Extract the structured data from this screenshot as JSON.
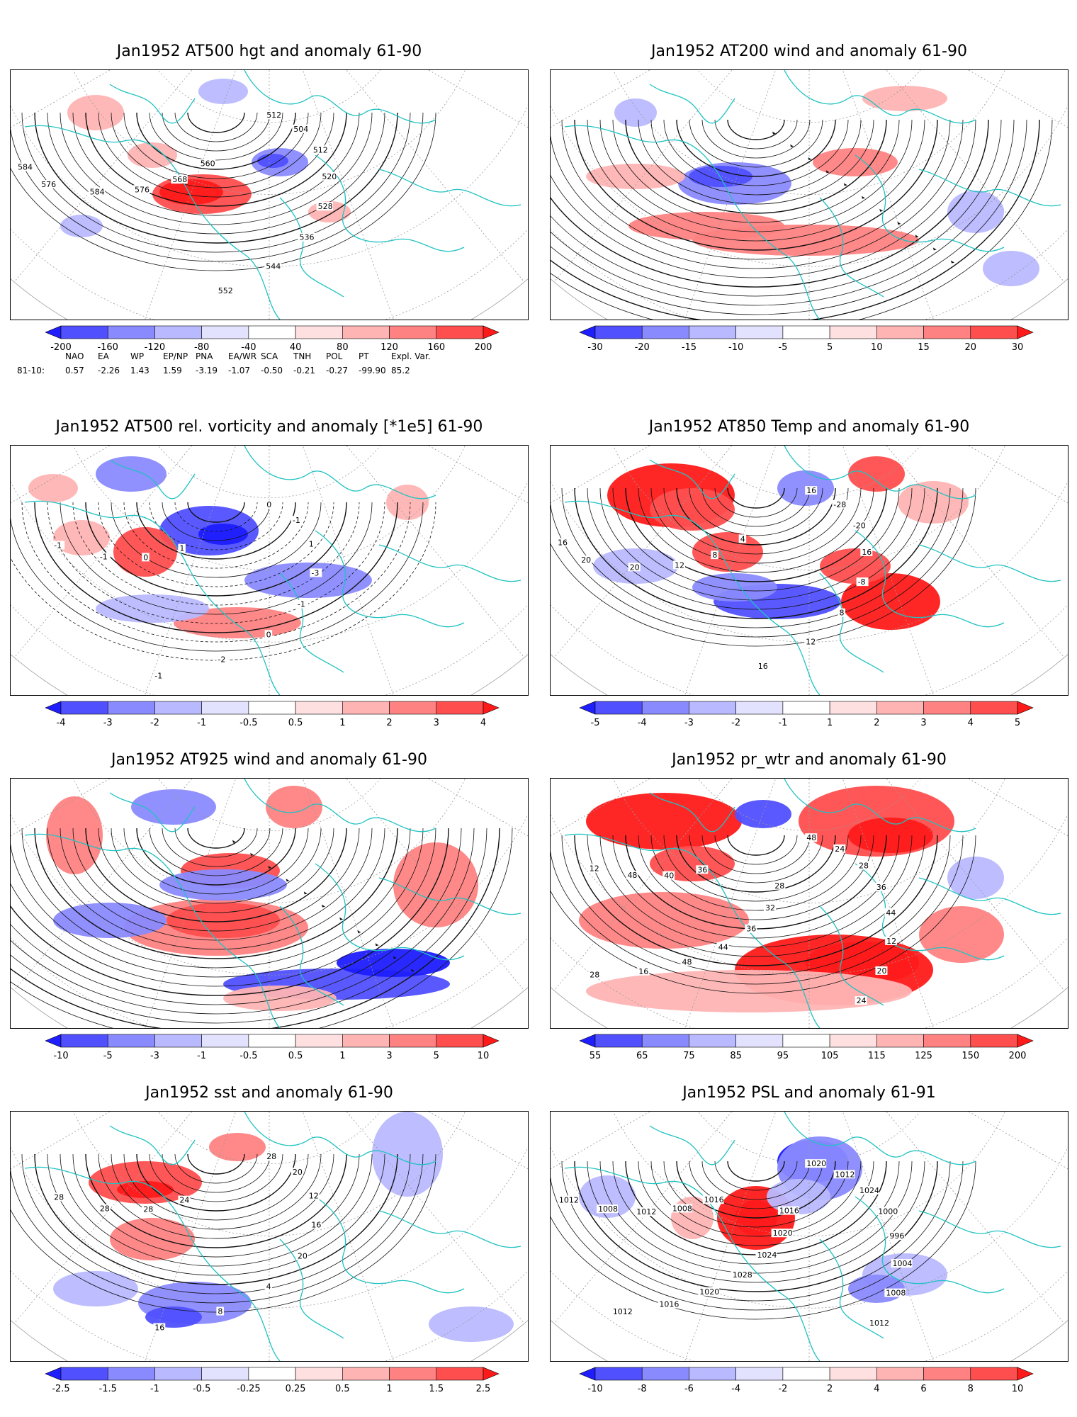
{
  "colors": {
    "coast": "#20c2c2",
    "contour": "#111111",
    "grid": "#9a9a9a",
    "scale": [
      "#1e1eff",
      "#5050ff",
      "#8a8aff",
      "#b9b9ff",
      "#e2e2ff",
      "#ffffff",
      "#ffe0e0",
      "#ffb4b4",
      "#ff8282",
      "#ff4e4e",
      "#ff1a1a"
    ]
  },
  "panels": [
    {
      "title": "Jan1952 AT500 hgt and anomaly 61-90",
      "ticks": [
        "-200",
        "-160",
        "-120",
        "-80",
        "-40",
        "40",
        "80",
        "120",
        "160",
        "200"
      ],
      "contour_labels": [
        "512",
        "504",
        "512",
        "520",
        "528",
        "536",
        "544",
        "552",
        "560",
        "568",
        "576",
        "584",
        "576",
        "584"
      ],
      "type": "hgt"
    },
    {
      "title": "Jan1952 AT200 wind and anomaly 61-90",
      "ticks": [
        "-30",
        "-20",
        "-15",
        "-10",
        "-5",
        "5",
        "10",
        "15",
        "20",
        "30"
      ],
      "contour_labels": [],
      "type": "wind"
    },
    {
      "title": "Jan1952 AT500 rel. vorticity and anomaly [*1e5] 61-90",
      "ticks": [
        "-4",
        "-3",
        "-2",
        "-1",
        "-0.5",
        "0.5",
        "1",
        "2",
        "3",
        "4"
      ],
      "contour_labels": [
        "0",
        "-1",
        "1",
        "-3",
        "-1",
        "0",
        "-2",
        "-1",
        "1",
        "0",
        "-1",
        "-1"
      ],
      "type": "vort"
    },
    {
      "title": "Jan1952 AT850 Temp and anomaly 61-90",
      "ticks": [
        "-5",
        "-4",
        "-3",
        "-2",
        "-1",
        "1",
        "2",
        "3",
        "4",
        "5"
      ],
      "contour_labels": [
        "16",
        "-28",
        "-20",
        "16",
        "-8",
        "8",
        "12",
        "16",
        "4",
        "8",
        "12",
        "20",
        "20",
        "16"
      ],
      "type": "temp"
    },
    {
      "title": "Jan1952 AT925 wind and anomaly 61-90",
      "ticks": [
        "-10",
        "-5",
        "-3",
        "-1",
        "-0.5",
        "0.5",
        "1",
        "3",
        "5",
        "10"
      ],
      "contour_labels": [],
      "type": "wind"
    },
    {
      "title": "Jan1952 pr_wtr and anomaly 61-90",
      "ticks": [
        "55",
        "65",
        "75",
        "85",
        "95",
        "105",
        "115",
        "125",
        "150",
        "200"
      ],
      "contour_labels": [
        "48",
        "24",
        "28",
        "36",
        "44",
        "12",
        "20",
        "24",
        "28",
        "32",
        "36",
        "44",
        "48",
        "16",
        "28",
        "36",
        "40",
        "48",
        "12"
      ],
      "type": "prw"
    },
    {
      "title": "Jan1952 sst and anomaly 61-90",
      "ticks": [
        "-2.5",
        "-1.5",
        "-1",
        "-0.5",
        "-0.25",
        "0.25",
        "0.5",
        "1",
        "1.5",
        "2.5"
      ],
      "contour_labels": [
        "28",
        "20",
        "12",
        "16",
        "20",
        "4",
        "8",
        "16",
        "24",
        "28",
        "28",
        "28"
      ],
      "type": "sst"
    },
    {
      "title": "Jan1952 PSL and anomaly 61-91",
      "ticks": [
        "-10",
        "-8",
        "-6",
        "-4",
        "-2",
        "2",
        "4",
        "6",
        "8",
        "10"
      ],
      "contour_labels": [
        "1020",
        "1012",
        "1024",
        "1000",
        "996",
        "1004",
        "1008",
        "1012",
        "1016",
        "1020",
        "1024",
        "1028",
        "1020",
        "1016",
        "1012",
        "1016",
        "1008",
        "1012",
        "1008",
        "1012"
      ],
      "type": "psl"
    }
  ],
  "indices": {
    "header": [
      "NAO",
      "EA",
      "WP",
      "EP/NP",
      "PNA",
      "EA/WR",
      "SCA",
      "TNH",
      "POL",
      "PT",
      "Expl. Var."
    ],
    "row_label": "81-10:",
    "values": [
      "0.57",
      "-2.26",
      "1.43",
      "1.59",
      "-3.19",
      "-1.07",
      "-0.50",
      "-0.21",
      "-0.27",
      "-99.90",
      "85.2"
    ]
  }
}
